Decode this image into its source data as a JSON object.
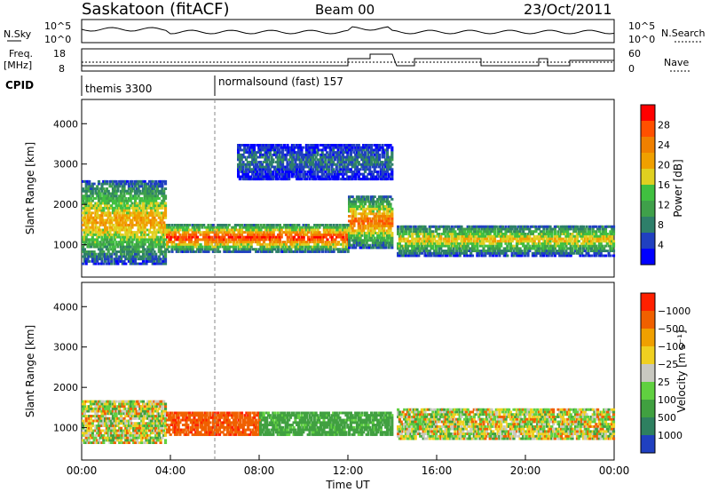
{
  "header": {
    "station": "Saskatoon (fitACF)",
    "beam": "Beam 00",
    "date": "23/Oct/2011"
  },
  "summary": {
    "nsky_label": [
      "N.Sky",
      ""
    ],
    "nsky_ticks": [
      "10^5",
      "10^0"
    ],
    "nsearch_label": "N.Search",
    "nsearch_ticks": [
      "10^5",
      "10^0"
    ],
    "freq_label": [
      "Freq.",
      "[MHz]"
    ],
    "freq_ticks": [
      "18",
      "8"
    ],
    "nave_label": "Nave",
    "nave_ticks": [
      "60",
      "0"
    ],
    "cpid_label": "CPID",
    "cpid_segments": [
      {
        "start_ut": "00:00",
        "name": "themis 3300"
      },
      {
        "start_ut": "06:00",
        "name": "normalsound (fast) 157"
      }
    ]
  },
  "chart_data": [
    {
      "type": "heatmap",
      "name": "power",
      "xlabel": "",
      "ylabel": "Slant Range [km]",
      "xlim": [
        0,
        24
      ],
      "ylim": [
        200,
        4600
      ],
      "yticks": [
        1000,
        2000,
        3000,
        4000
      ],
      "colorbar": {
        "label": "Power [dB]",
        "ticks": [
          4,
          8,
          12,
          16,
          20,
          24,
          28
        ],
        "range": [
          0,
          32
        ],
        "colors": [
          "#0000ff",
          "#2040c0",
          "#2e7f6a",
          "#3fa04a",
          "#40c040",
          "#e0d020",
          "#f0a000",
          "#f08000",
          "#ff5000",
          "#ff0000"
        ]
      },
      "features": [
        {
          "start_hr": 0.0,
          "end_hr": 3.8,
          "range_km": [
            500,
            2600
          ],
          "peak_db": 22
        },
        {
          "start_hr": 3.8,
          "end_hr": 12.0,
          "range_km": [
            800,
            1500
          ],
          "peak_db": 30
        },
        {
          "start_hr": 12.0,
          "end_hr": 14.0,
          "range_km": [
            900,
            2200
          ],
          "peak_db": 26
        },
        {
          "start_hr": 14.2,
          "end_hr": 24.0,
          "range_km": [
            700,
            1500
          ],
          "peak_db": 20
        },
        {
          "start_hr": 7.0,
          "end_hr": 14.0,
          "range_km": [
            2600,
            3500
          ],
          "peak_db": 8
        }
      ]
    },
    {
      "type": "heatmap",
      "name": "velocity",
      "xlabel": "Time UT",
      "ylabel": "Slant Range [km]",
      "xlim": [
        0,
        24
      ],
      "ylim": [
        200,
        4600
      ],
      "yticks": [
        1000,
        2000,
        3000,
        4000
      ],
      "xticks": [
        "00:00",
        "04:00",
        "08:00",
        "12:00",
        "16:00",
        "20:00",
        "00:00"
      ],
      "colorbar": {
        "label": "Velocity [m s⁻¹]",
        "ticks": [
          "1000",
          "500",
          "100",
          "25",
          "−25",
          "−100",
          "−500",
          "−1000"
        ],
        "colors": [
          "#2040c0",
          "#2e8060",
          "#40a040",
          "#60d040",
          "#c8c8c0",
          "#f0d020",
          "#f0a000",
          "#f06000",
          "#ff2000"
        ]
      },
      "features": [
        {
          "start_hr": 0.0,
          "end_hr": 3.8,
          "range_km": [
            600,
            1700
          ],
          "vel_ms": 0
        },
        {
          "start_hr": 3.8,
          "end_hr": 8.0,
          "range_km": [
            800,
            1400
          ],
          "vel_ms": -400
        },
        {
          "start_hr": 8.0,
          "end_hr": 14.0,
          "range_km": [
            800,
            1400
          ],
          "vel_ms": 200
        },
        {
          "start_hr": 14.2,
          "end_hr": 24.0,
          "range_km": [
            700,
            1500
          ],
          "vel_ms": 0
        }
      ]
    }
  ]
}
